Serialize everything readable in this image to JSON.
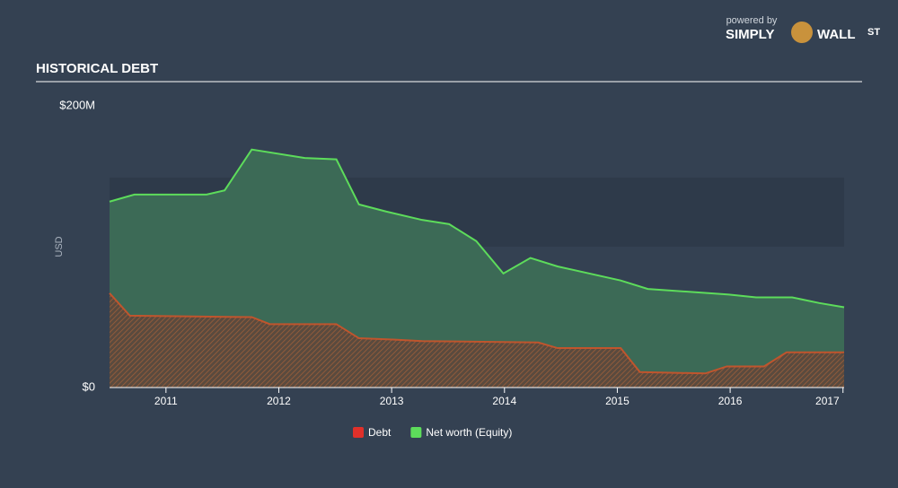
{
  "brand": {
    "powered": "powered by",
    "simply": "SIMPLY",
    "wall": "WALL",
    "st": "ST"
  },
  "chart_data": {
    "type": "area",
    "title": "HISTORICAL DEBT",
    "ylabel": "USD",
    "xlim": [
      2010.5,
      2017.01
    ],
    "xticks": [
      2011,
      2012,
      2013,
      2014,
      2015,
      2016,
      2017
    ],
    "ylim": [
      0,
      200
    ],
    "yticks": [
      {
        "value": 0,
        "label": "$0"
      },
      {
        "value": 200,
        "label": "$200M"
      }
    ],
    "series": [
      {
        "name": "Net worth (Equity)",
        "color": "#5ddc5b",
        "fill": "#3c6a56",
        "x": [
          2010.5,
          2010.72,
          2011.36,
          2011.52,
          2011.76,
          2012.23,
          2012.51,
          2012.71,
          2012.95,
          2013.27,
          2013.51,
          2013.75,
          2013.99,
          2014.23,
          2014.47,
          2015.03,
          2015.27,
          2015.99,
          2016.23,
          2016.55,
          2016.79,
          2017.01
        ],
        "values": [
          132,
          137,
          137,
          140,
          169,
          163,
          162,
          130,
          125,
          119,
          116,
          104,
          81,
          92,
          86,
          76,
          70,
          66,
          64,
          64,
          60,
          57
        ]
      },
      {
        "name": "Debt",
        "color": "#e0302a",
        "line": "#c0552d",
        "x": [
          2010.5,
          2010.68,
          2011.76,
          2011.92,
          2012.51,
          2012.71,
          2013.03,
          2013.27,
          2014.3,
          2014.47,
          2015.03,
          2015.2,
          2015.78,
          2015.97,
          2016.3,
          2016.5,
          2017.01
        ],
        "values": [
          67,
          51,
          50,
          45,
          45,
          35,
          34,
          33,
          32,
          28,
          28,
          11,
          10,
          15,
          15,
          25,
          25
        ]
      }
    ]
  }
}
